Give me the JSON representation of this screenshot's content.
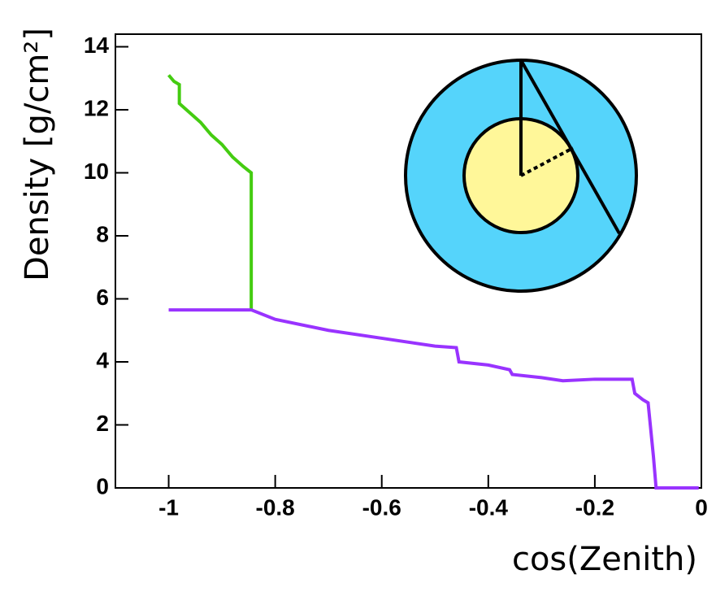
{
  "chart_data": {
    "type": "line",
    "x_label": "cos(Zenith)",
    "y_label": "Density [g/cm²]",
    "xlim": [
      -1.1,
      0
    ],
    "ylim": [
      0,
      14.4
    ],
    "xticks": [
      -1,
      -0.8,
      -0.6,
      -0.4,
      -0.2,
      0
    ],
    "yticks": [
      0,
      2,
      4,
      6,
      8,
      10,
      12,
      14
    ],
    "series": [
      {
        "color": "#44cc11",
        "x": [
          -1,
          -0.99,
          -0.98,
          -0.98,
          -0.96,
          -0.94,
          -0.92,
          -0.9,
          -0.88,
          -0.86,
          -0.845,
          -0.845
        ],
        "values": [
          13.1,
          12.9,
          12.8,
          12.2,
          11.9,
          11.6,
          11.2,
          10.9,
          10.5,
          10.2,
          10.0,
          5.65
        ]
      },
      {
        "color": "#9933ff",
        "x": [
          -1,
          -0.845,
          -0.8,
          -0.7,
          -0.6,
          -0.5,
          -0.46,
          -0.455,
          -0.4,
          -0.36,
          -0.355,
          -0.3,
          -0.26,
          -0.2,
          -0.13,
          -0.125,
          -0.11,
          -0.1,
          -0.09,
          -0.085,
          -0.005
        ],
        "values": [
          5.65,
          5.65,
          5.35,
          5.0,
          4.75,
          4.5,
          4.45,
          4.0,
          3.9,
          3.75,
          3.6,
          3.5,
          3.4,
          3.45,
          3.45,
          3.0,
          2.8,
          2.7,
          1.0,
          0.0,
          0.0
        ]
      }
    ]
  }
}
